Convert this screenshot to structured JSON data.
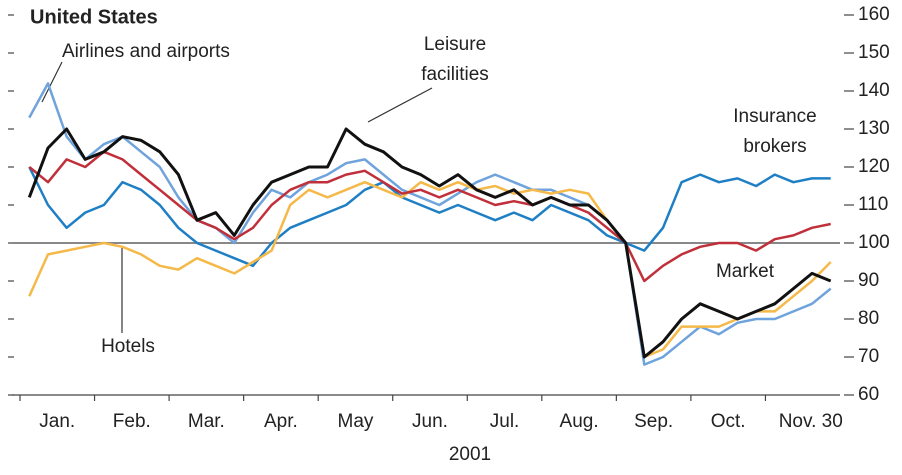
{
  "chart_data": {
    "type": "line",
    "title": "United States",
    "x_label": "2001",
    "categories": [
      "Jan.",
      "Feb.",
      "Mar.",
      "Apr.",
      "May",
      "Jun.",
      "Jul.",
      "Aug.",
      "Sep.",
      "Oct.",
      "Nov. 30"
    ],
    "ylim": [
      60,
      160
    ],
    "yticks": [
      60,
      70,
      80,
      90,
      100,
      110,
      120,
      130,
      140,
      150,
      160
    ],
    "reference_line": 100,
    "series": [
      {
        "name": [
          "Airlines and airports"
        ],
        "color": "#6fa3dc",
        "values": [
          [
            133,
            142,
            128,
            122
          ],
          [
            126,
            128,
            124,
            120
          ],
          [
            112,
            106,
            104,
            100
          ],
          [
            108,
            114,
            112,
            116
          ],
          [
            118,
            121,
            122,
            118
          ],
          [
            114,
            112,
            110,
            113
          ],
          [
            116,
            118,
            116,
            114
          ],
          [
            114,
            112,
            110,
            106
          ],
          [
            100,
            68,
            70,
            74
          ],
          [
            78,
            76,
            79,
            80
          ],
          [
            80,
            82,
            84,
            88
          ]
        ]
      },
      {
        "name": [
          "Insurance",
          "brokers"
        ],
        "color": "#1f7fc4",
        "values": [
          [
            120,
            110,
            104,
            108
          ],
          [
            110,
            116,
            114,
            110
          ],
          [
            104,
            100,
            98,
            96
          ],
          [
            94,
            100,
            104,
            106
          ],
          [
            108,
            110,
            114,
            116
          ],
          [
            112,
            110,
            108,
            110
          ],
          [
            108,
            106,
            108,
            106
          ],
          [
            110,
            108,
            106,
            102
          ],
          [
            100,
            98,
            104,
            116
          ],
          [
            118,
            116,
            117,
            115
          ],
          [
            118,
            116,
            117,
            117
          ]
        ]
      },
      {
        "name": [
          "Hotels"
        ],
        "color": "#f5b94a",
        "values": [
          [
            86,
            97,
            98,
            99
          ],
          [
            100,
            99,
            97,
            94
          ],
          [
            93,
            96,
            94,
            92
          ],
          [
            95,
            98,
            110,
            114
          ],
          [
            112,
            114,
            116,
            114
          ],
          [
            112,
            116,
            114,
            116
          ],
          [
            114,
            115,
            113,
            114
          ],
          [
            113,
            114,
            113,
            106
          ],
          [
            100,
            70,
            72,
            78
          ],
          [
            78,
            78,
            80,
            82
          ],
          [
            82,
            86,
            90,
            95
          ]
        ]
      },
      {
        "name": [
          "Market"
        ],
        "color": "#c0303a",
        "values": [
          [
            120,
            116,
            122,
            120
          ],
          [
            124,
            122,
            118,
            114
          ],
          [
            110,
            106,
            104,
            101
          ],
          [
            104,
            110,
            114,
            116
          ],
          [
            116,
            118,
            119,
            116
          ],
          [
            113,
            114,
            112,
            114
          ],
          [
            112,
            110,
            111,
            110
          ],
          [
            112,
            110,
            108,
            104
          ],
          [
            100,
            90,
            94,
            97
          ],
          [
            99,
            100,
            100,
            98
          ],
          [
            101,
            102,
            104,
            105
          ]
        ]
      },
      {
        "name": [
          "Leisure",
          "facilities"
        ],
        "color": "#111111",
        "values": [
          [
            112,
            125,
            130,
            122
          ],
          [
            124,
            128,
            127,
            124
          ],
          [
            118,
            106,
            108,
            102
          ],
          [
            110,
            116,
            118,
            120
          ],
          [
            120,
            130,
            126,
            124
          ],
          [
            120,
            118,
            115,
            118
          ],
          [
            114,
            112,
            114,
            110
          ],
          [
            112,
            110,
            110,
            106
          ],
          [
            100,
            70,
            74,
            80
          ],
          [
            84,
            82,
            80,
            82
          ],
          [
            84,
            88,
            92,
            90
          ]
        ]
      }
    ]
  }
}
